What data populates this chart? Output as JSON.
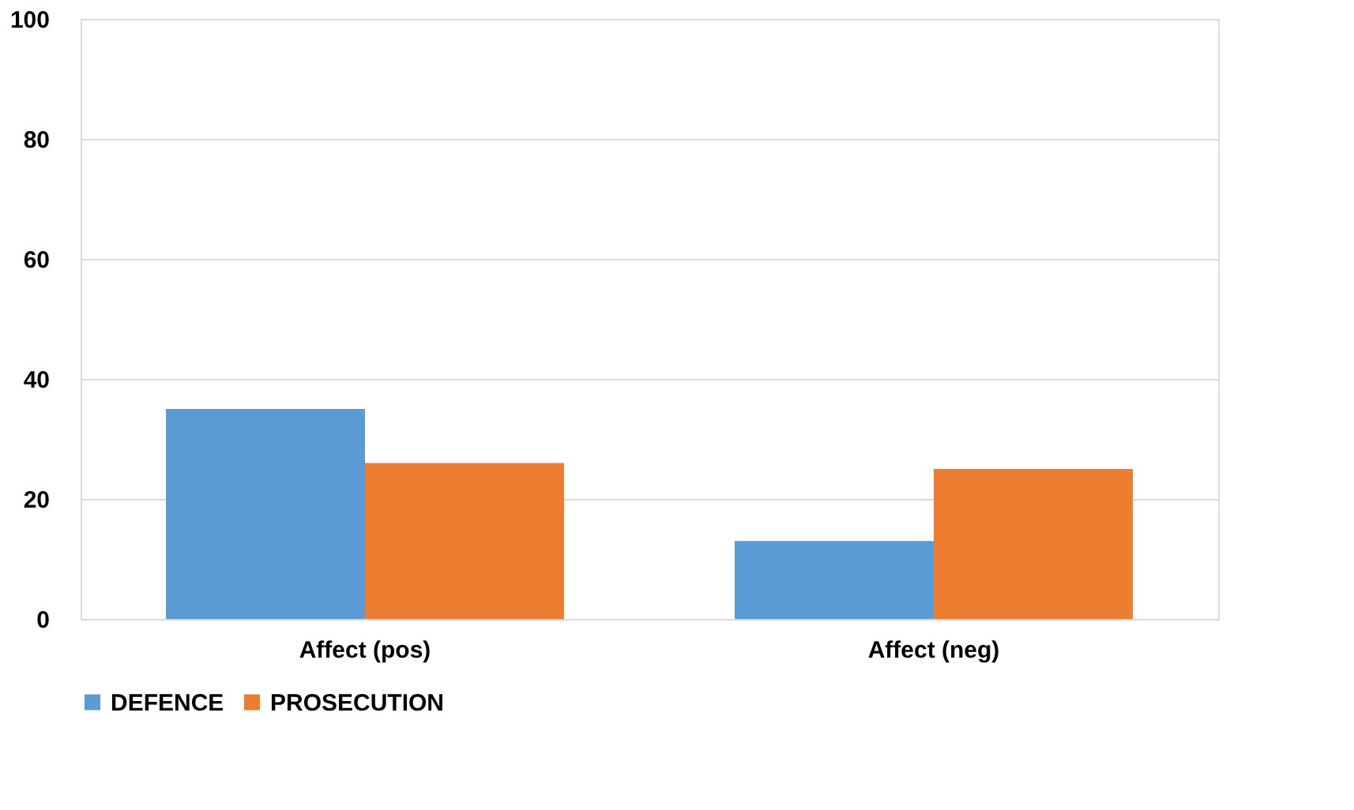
{
  "chart_data": {
    "type": "bar",
    "categories": [
      "Affect (pos)",
      "Affect (neg)"
    ],
    "series": [
      {
        "name": "DEFENCE",
        "color": "#5b9bd5",
        "values": [
          35,
          13
        ]
      },
      {
        "name": "PROSECUTION",
        "color": "#ed7d31",
        "values": [
          26,
          25
        ]
      }
    ],
    "ylim": [
      0,
      100
    ],
    "yticks": [
      0,
      20,
      40,
      60,
      80,
      100
    ],
    "grid": "y",
    "legend": "bottom"
  }
}
